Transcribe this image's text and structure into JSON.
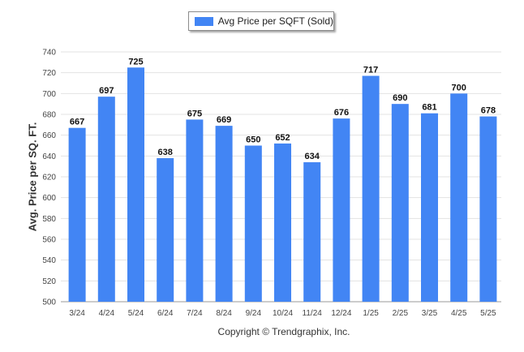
{
  "chart_data": {
    "type": "bar",
    "categories": [
      "3/24",
      "4/24",
      "5/24",
      "6/24",
      "7/24",
      "8/24",
      "9/24",
      "10/24",
      "11/24",
      "12/24",
      "1/25",
      "2/25",
      "3/25",
      "4/25",
      "5/25"
    ],
    "series": [
      {
        "name": "Avg Price per SQFT (Sold)",
        "values": [
          667,
          697,
          725,
          638,
          675,
          669,
          650,
          652,
          634,
          676,
          717,
          690,
          681,
          700,
          678
        ]
      }
    ],
    "title": "",
    "xlabel": "",
    "ylabel": "Avg. Price per SQ. FT.",
    "ylim": [
      500,
      740
    ],
    "yticks": [
      500,
      520,
      540,
      560,
      580,
      600,
      620,
      640,
      660,
      680,
      700,
      720,
      740
    ],
    "grid": true,
    "legend_position": "top-center",
    "data_labels": true,
    "bar_color": "#4285f4",
    "footer": "Copyright © Trendgraphix, Inc."
  }
}
